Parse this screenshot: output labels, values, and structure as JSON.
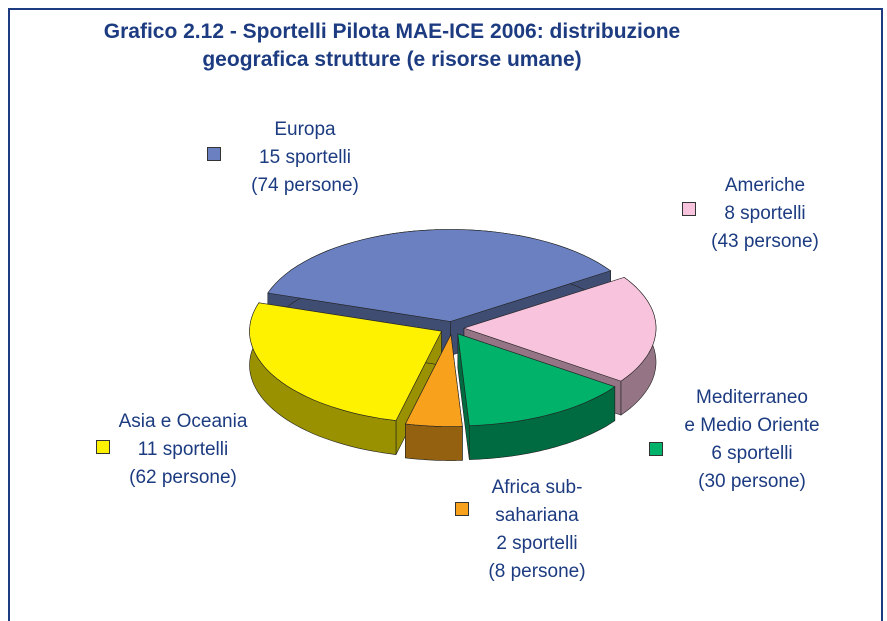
{
  "chart_data": {
    "type": "pie",
    "title": "Grafico 2.12 - Sportelli Pilota MAE-ICE 2006: distribuzione\ngeografica strutture (e risorse umane)",
    "categories": [
      "Europa",
      "Americhe",
      "Mediterraneo\ne Medio Oriente",
      "Africa sub-\nsahariana",
      "Asia e Oceania"
    ],
    "values": [
      15,
      8,
      6,
      2,
      11
    ],
    "value_labels": [
      "15 sportelli",
      "8 sportelli",
      "6 sportelli",
      "2 sportelli",
      "11 sportelli"
    ],
    "persone": [
      74,
      43,
      30,
      8,
      62
    ],
    "persone_labels": [
      "(74 persone)",
      "(43 persone)",
      "(30 persone)",
      "(8 persone)",
      "(62 persone)"
    ],
    "colors": [
      "#6a80c0",
      "#f8c3dd",
      "#00b26a",
      "#f7a11c",
      "#fff200"
    ]
  }
}
